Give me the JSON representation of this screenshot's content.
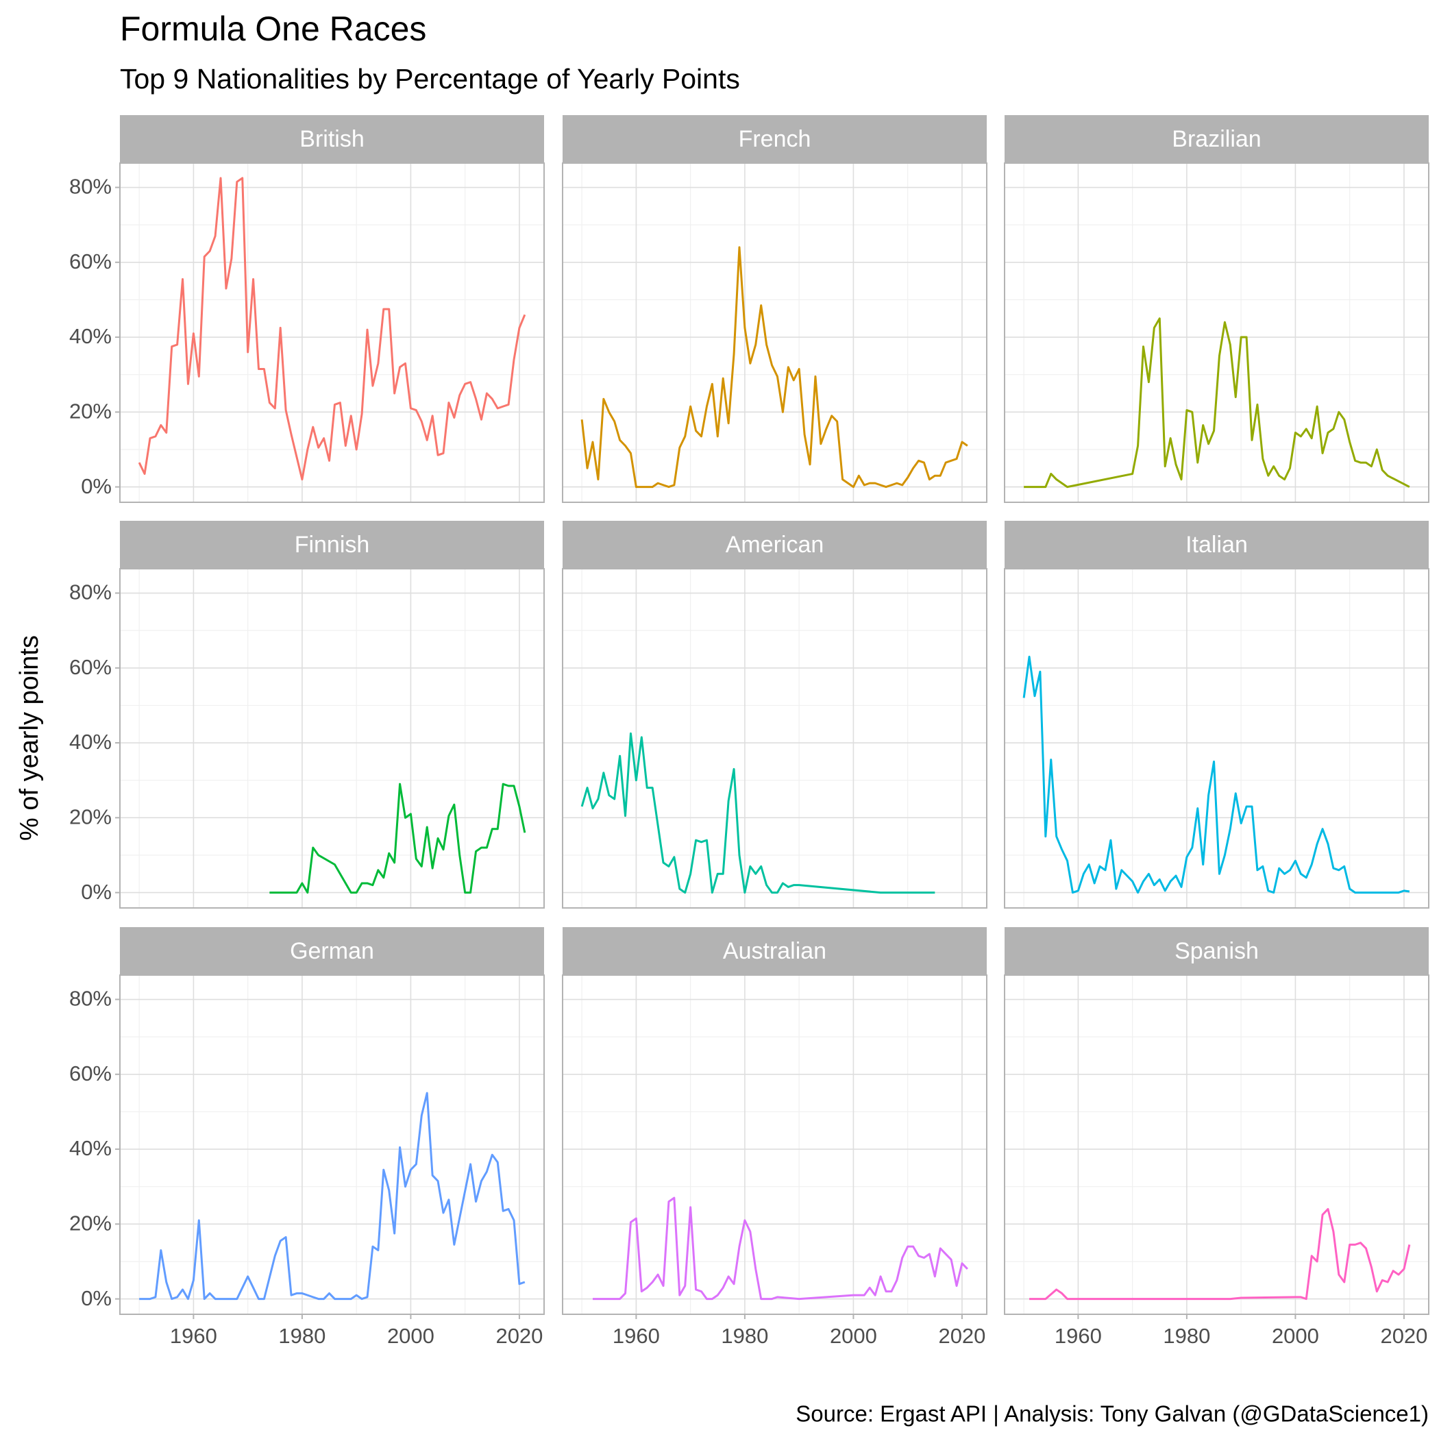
{
  "chart_data": {
    "type": "line",
    "title": "Formula One Races",
    "subtitle": "Top 9 Nationalities by Percentage of Yearly Points",
    "y_label": "% of yearly points",
    "caption": "Source: Ergast API  |  Analysis: Tony Galvan (@GDataScience1)",
    "facet_columns": 3,
    "grid": true,
    "xlim": [
      1946.45,
      2024.55
    ],
    "ylim": [
      -4.1,
      86.5
    ],
    "xticks": [
      1960,
      1980,
      2000,
      2020
    ],
    "minor_xticks": [
      1950,
      1970,
      1990,
      2010
    ],
    "yticks": [
      {
        "value": 0,
        "label": "0%"
      },
      {
        "value": 20,
        "label": "20%"
      },
      {
        "value": 40,
        "label": "40%"
      },
      {
        "value": 60,
        "label": "60%"
      },
      {
        "value": 80,
        "label": "80%"
      }
    ],
    "minor_yticks": [
      10,
      30,
      50,
      70
    ],
    "series": [
      {
        "name": "British",
        "color": "#F8766D",
        "x": [
          1950,
          1951,
          1952,
          1953,
          1954,
          1955,
          1956,
          1957,
          1958,
          1959,
          1960,
          1961,
          1962,
          1963,
          1964,
          1965,
          1966,
          1967,
          1968,
          1969,
          1970,
          1971,
          1972,
          1973,
          1974,
          1975,
          1976,
          1977,
          1978,
          1979,
          1980,
          1981,
          1982,
          1983,
          1984,
          1985,
          1986,
          1987,
          1988,
          1989,
          1990,
          1991,
          1992,
          1993,
          1994,
          1995,
          1996,
          1997,
          1998,
          1999,
          2000,
          2001,
          2002,
          2003,
          2004,
          2005,
          2006,
          2007,
          2008,
          2009,
          2010,
          2011,
          2012,
          2013,
          2014,
          2015,
          2016,
          2017,
          2018,
          2019,
          2020,
          2021
        ],
        "values": [
          6.5,
          3.5,
          13,
          13.5,
          16.5,
          14.5,
          37.5,
          38,
          55.5,
          27.5,
          41,
          29.5,
          61.5,
          63,
          67,
          82.5,
          53,
          61,
          81.5,
          82.5,
          36,
          55.5,
          31.5,
          31.5,
          22.5,
          21,
          42.5,
          20.5,
          14,
          8,
          2,
          10,
          16,
          10.5,
          13,
          7,
          22,
          22.5,
          11,
          19,
          10,
          19.5,
          42,
          27,
          33,
          47.5,
          47.5,
          25,
          32,
          33,
          21,
          20.5,
          17.5,
          12.5,
          19,
          8.5,
          9,
          22.5,
          18.5,
          24.5,
          27.5,
          28,
          23.5,
          18,
          25,
          23.5,
          21,
          21.5,
          22,
          34,
          42.5,
          46
        ]
      },
      {
        "name": "French",
        "color": "#D39200",
        "x": [
          1950,
          1951,
          1952,
          1953,
          1954,
          1955,
          1956,
          1957,
          1958,
          1959,
          1960,
          1961,
          1962,
          1963,
          1964,
          1965,
          1966,
          1967,
          1968,
          1969,
          1970,
          1971,
          1972,
          1973,
          1974,
          1975,
          1976,
          1977,
          1978,
          1979,
          1980,
          1981,
          1982,
          1983,
          1984,
          1985,
          1986,
          1987,
          1988,
          1989,
          1990,
          1991,
          1992,
          1993,
          1994,
          1995,
          1996,
          1997,
          1998,
          1999,
          2000,
          2001,
          2002,
          2003,
          2004,
          2005,
          2006,
          2007,
          2008,
          2009,
          2010,
          2011,
          2012,
          2013,
          2014,
          2015,
          2016,
          2017,
          2018,
          2019,
          2020,
          2021
        ],
        "values": [
          18,
          5,
          12,
          2,
          23.5,
          20,
          17.5,
          12.5,
          11,
          9,
          0,
          0,
          0,
          0,
          1,
          0.5,
          0,
          0.5,
          10.5,
          13.5,
          21.5,
          15,
          13.5,
          21.5,
          27.5,
          13.5,
          29,
          17,
          35.5,
          64,
          42.5,
          33,
          38,
          48.5,
          38,
          32.5,
          29.5,
          20,
          32,
          28.5,
          31.5,
          14,
          6,
          29.5,
          11.5,
          15.5,
          19,
          17.5,
          2,
          1,
          0,
          3,
          0.5,
          1,
          1,
          0.5,
          0,
          0.5,
          1,
          0.5,
          2.5,
          5,
          7,
          6.5,
          2,
          3,
          3,
          6.5,
          7,
          7.5,
          12,
          11
        ]
      },
      {
        "name": "Brazilian",
        "color": "#93AA00",
        "x": [
          1950,
          1951,
          1952,
          1953,
          1954,
          1955,
          1956,
          1957,
          1958,
          1970,
          1971,
          1972,
          1973,
          1974,
          1975,
          1976,
          1977,
          1978,
          1979,
          1980,
          1981,
          1982,
          1983,
          1984,
          1985,
          1986,
          1987,
          1988,
          1989,
          1990,
          1991,
          1992,
          1993,
          1994,
          1995,
          1996,
          1997,
          1998,
          1999,
          2000,
          2001,
          2002,
          2003,
          2004,
          2005,
          2006,
          2007,
          2008,
          2009,
          2010,
          2011,
          2012,
          2013,
          2014,
          2015,
          2016,
          2017,
          2021
        ],
        "values": [
          0,
          0,
          0,
          0,
          0,
          3.5,
          2,
          1,
          0,
          3.5,
          11,
          37.5,
          28,
          42.5,
          45,
          5.5,
          13,
          6,
          2,
          20.5,
          20,
          6.5,
          16.5,
          11.5,
          15,
          35,
          44,
          38,
          24,
          40,
          40,
          12.5,
          22,
          7.5,
          3,
          5.5,
          3,
          2,
          5,
          14.5,
          13.5,
          15.5,
          13,
          21.5,
          9,
          14.5,
          15.5,
          20,
          18,
          12,
          7,
          6.5,
          6.5,
          5.5,
          10,
          4.5,
          3,
          0
        ]
      },
      {
        "name": "Finnish",
        "color": "#00BA38",
        "x": [
          1974,
          1975,
          1976,
          1977,
          1978,
          1979,
          1980,
          1981,
          1982,
          1983,
          1986,
          1989,
          1990,
          1991,
          1992,
          1993,
          1994,
          1995,
          1996,
          1997,
          1998,
          1999,
          2000,
          2001,
          2002,
          2003,
          2004,
          2005,
          2006,
          2007,
          2008,
          2009,
          2010,
          2011,
          2012,
          2013,
          2014,
          2015,
          2016,
          2017,
          2018,
          2019,
          2020,
          2021
        ],
        "values": [
          0,
          0,
          0,
          0,
          0,
          0,
          2.5,
          0,
          12,
          10,
          7.5,
          0,
          0,
          2.5,
          2.5,
          2,
          6,
          4,
          10.5,
          8,
          29,
          20,
          21,
          9,
          7,
          17.5,
          6.5,
          14.5,
          11.5,
          20.5,
          23.5,
          10,
          0,
          0,
          11,
          12,
          12,
          17,
          17,
          29,
          28.5,
          28.5,
          23,
          16
        ]
      },
      {
        "name": "American",
        "color": "#00C19F",
        "x": [
          1950,
          1951,
          1952,
          1953,
          1954,
          1955,
          1956,
          1957,
          1958,
          1959,
          1960,
          1961,
          1962,
          1963,
          1964,
          1965,
          1966,
          1967,
          1968,
          1969,
          1970,
          1971,
          1972,
          1973,
          1974,
          1975,
          1976,
          1977,
          1978,
          1979,
          1980,
          1981,
          1982,
          1983,
          1984,
          1985,
          1986,
          1987,
          1988,
          1989,
          1990,
          2005,
          2015
        ],
        "values": [
          23,
          28,
          22.5,
          25,
          32,
          26,
          25,
          36.5,
          20.5,
          42.5,
          30,
          41.5,
          28,
          28,
          18,
          8,
          7,
          9.5,
          1,
          0,
          5,
          14,
          13.5,
          14,
          0,
          5,
          5,
          24.5,
          33,
          10,
          0,
          7,
          5,
          7,
          2,
          0,
          0,
          2.5,
          1.5,
          2,
          2,
          0,
          0
        ]
      },
      {
        "name": "Italian",
        "color": "#00B9E3",
        "x": [
          1950,
          1951,
          1952,
          1953,
          1954,
          1955,
          1956,
          1957,
          1958,
          1959,
          1960,
          1961,
          1962,
          1963,
          1964,
          1965,
          1966,
          1967,
          1968,
          1969,
          1970,
          1971,
          1972,
          1973,
          1974,
          1975,
          1976,
          1977,
          1978,
          1979,
          1980,
          1981,
          1982,
          1983,
          1984,
          1985,
          1986,
          1987,
          1988,
          1989,
          1990,
          1991,
          1992,
          1993,
          1994,
          1995,
          1996,
          1997,
          1998,
          1999,
          2000,
          2001,
          2002,
          2003,
          2004,
          2005,
          2006,
          2007,
          2008,
          2009,
          2010,
          2011,
          2019,
          2020,
          2021
        ],
        "values": [
          52,
          63,
          52.5,
          59,
          15,
          35.5,
          15,
          11.5,
          8.5,
          0,
          0.5,
          5,
          7.5,
          2.5,
          7,
          6,
          14,
          1,
          6,
          4.5,
          3,
          0,
          3,
          5,
          2,
          3.5,
          0.5,
          3,
          4.5,
          1.5,
          9.5,
          12,
          22.5,
          7.5,
          26,
          35,
          5,
          10,
          17,
          26.5,
          18.5,
          23,
          23,
          6,
          7,
          0.5,
          0,
          6.5,
          5,
          6,
          8.5,
          5,
          4,
          7.5,
          13,
          17,
          13,
          6.5,
          6,
          7,
          1,
          0,
          0,
          0.5,
          0.3
        ]
      },
      {
        "name": "German",
        "color": "#619CFF",
        "x": [
          1950,
          1951,
          1952,
          1953,
          1954,
          1955,
          1956,
          1957,
          1958,
          1959,
          1960,
          1961,
          1962,
          1963,
          1964,
          1968,
          1970,
          1971,
          1972,
          1973,
          1975,
          1976,
          1977,
          1978,
          1979,
          1980,
          1981,
          1982,
          1983,
          1984,
          1985,
          1986,
          1989,
          1990,
          1991,
          1992,
          1993,
          1994,
          1995,
          1996,
          1997,
          1998,
          1999,
          2000,
          2001,
          2002,
          2003,
          2004,
          2005,
          2006,
          2007,
          2008,
          2011,
          2012,
          2013,
          2014,
          2015,
          2016,
          2017,
          2018,
          2019,
          2020,
          2021
        ],
        "values": [
          0,
          0,
          0,
          0.5,
          13,
          4.5,
          0,
          0.5,
          2.5,
          0,
          5,
          21,
          0,
          1.5,
          0,
          0,
          6,
          3,
          0,
          0,
          11.5,
          15.5,
          16.5,
          1,
          1.5,
          1.5,
          1,
          0.5,
          0,
          0,
          1.5,
          0,
          0,
          1,
          0,
          0.5,
          14,
          13,
          34.5,
          29,
          17.5,
          40.5,
          30,
          34.5,
          36,
          49,
          55,
          33,
          31.5,
          23,
          26.5,
          14.5,
          36,
          26,
          31.5,
          34,
          38.5,
          36.5,
          23.5,
          24,
          21,
          4,
          4.5
        ]
      },
      {
        "name": "Australian",
        "color": "#DB72FB",
        "x": [
          1952,
          1957,
          1958,
          1959,
          1960,
          1961,
          1962,
          1963,
          1964,
          1965,
          1966,
          1967,
          1968,
          1969,
          1970,
          1971,
          1972,
          1973,
          1974,
          1975,
          1976,
          1977,
          1978,
          1979,
          1980,
          1981,
          1982,
          1983,
          1985,
          1986,
          1990,
          2000,
          2002,
          2003,
          2004,
          2005,
          2006,
          2007,
          2008,
          2009,
          2010,
          2011,
          2012,
          2013,
          2014,
          2015,
          2016,
          2017,
          2018,
          2019,
          2020,
          2021
        ],
        "values": [
          0,
          0,
          1.5,
          20.5,
          21.5,
          2,
          3,
          4.5,
          6.5,
          3.5,
          26,
          27,
          1,
          3.5,
          24.5,
          2.5,
          2,
          0,
          0,
          1,
          3,
          6,
          4,
          14,
          21,
          18,
          8,
          0,
          0,
          0.5,
          0,
          1,
          1,
          3,
          1,
          6,
          2,
          2,
          5,
          11,
          14,
          14,
          11.5,
          11,
          12,
          6,
          13.5,
          12,
          10.5,
          3.5,
          9.5,
          8
        ]
      },
      {
        "name": "Spanish",
        "color": "#FF61C3",
        "x": [
          1951,
          1954,
          1956,
          1957,
          1958,
          1960,
          1988,
          1990,
          2000,
          2001,
          2002,
          2003,
          2004,
          2005,
          2006,
          2007,
          2008,
          2009,
          2010,
          2011,
          2012,
          2013,
          2014,
          2015,
          2016,
          2017,
          2018,
          2019,
          2020,
          2021
        ],
        "values": [
          0,
          0,
          2.5,
          1.5,
          0,
          0,
          0,
          0.3,
          0.5,
          0.5,
          0,
          11.5,
          10,
          22.5,
          24,
          18,
          6.5,
          4.5,
          14.5,
          14.5,
          15,
          13.5,
          8.5,
          2,
          5,
          4.5,
          7.5,
          6.5,
          8,
          14.5
        ]
      }
    ]
  }
}
